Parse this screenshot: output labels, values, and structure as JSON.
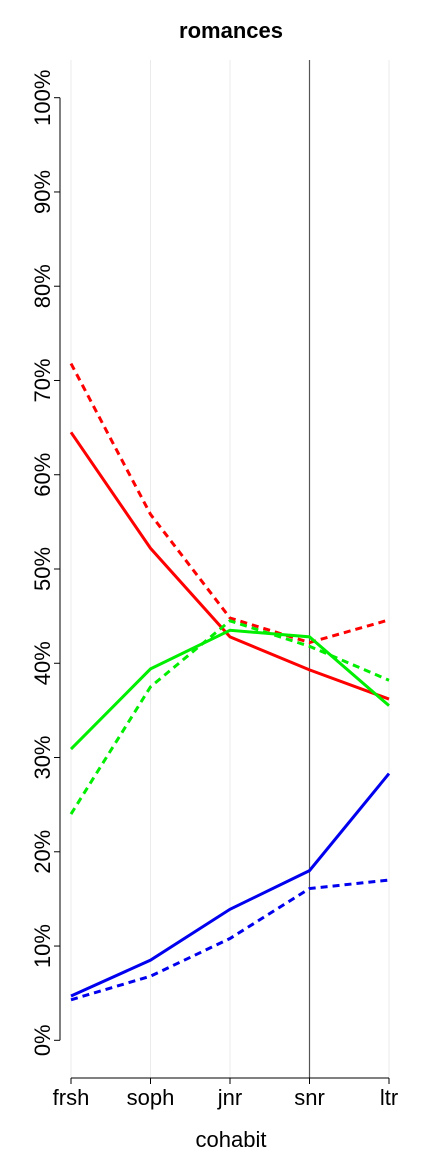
{
  "chart_data": {
    "type": "line",
    "title": "romances",
    "xlabel": "cohabit",
    "categories": [
      "frsh",
      "soph",
      "jnr",
      "snr",
      "ltr"
    ],
    "series": [
      {
        "color": "#ff0000",
        "linestyle": "solid",
        "values": [
          64.5,
          52.2,
          42.8,
          39.3,
          36.2
        ]
      },
      {
        "color": "#ff0000",
        "linestyle": "dotted",
        "values": [
          71.8,
          55.8,
          44.8,
          42.2,
          44.6
        ]
      },
      {
        "color": "#00ee00",
        "linestyle": "solid",
        "values": [
          30.9,
          39.4,
          43.5,
          42.8,
          35.5
        ]
      },
      {
        "color": "#00ee00",
        "linestyle": "dotted",
        "values": [
          24.0,
          37.5,
          44.5,
          41.8,
          38.2
        ]
      },
      {
        "color": "#0000ee",
        "linestyle": "solid",
        "values": [
          4.7,
          8.5,
          13.9,
          18.0,
          28.3
        ]
      },
      {
        "color": "#0000ee",
        "linestyle": "dotted",
        "values": [
          4.3,
          6.8,
          10.8,
          16.1,
          17.0
        ]
      }
    ],
    "ylim": [
      -4,
      104
    ],
    "yticks": [
      {
        "value": 0,
        "label": "0%"
      },
      {
        "value": 10,
        "label": "10%"
      },
      {
        "value": 20,
        "label": "20%"
      },
      {
        "value": 30,
        "label": "30%"
      },
      {
        "value": 40,
        "label": "40%"
      },
      {
        "value": 50,
        "label": "50%"
      },
      {
        "value": 60,
        "label": "60%"
      },
      {
        "value": 70,
        "label": "70%"
      },
      {
        "value": 80,
        "label": "80%"
      },
      {
        "value": 90,
        "label": "90%"
      },
      {
        "value": 100,
        "label": "100%"
      }
    ],
    "highlight_category": "snr",
    "grid": true
  }
}
